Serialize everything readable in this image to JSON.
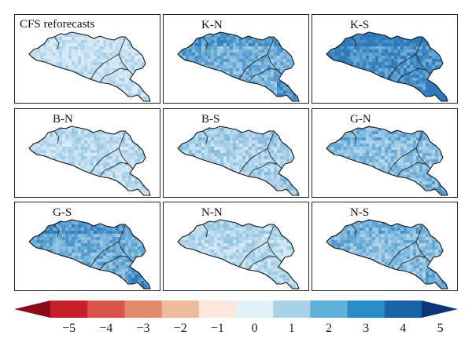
{
  "panels": [
    {
      "label": "CFS reforecasts",
      "intensity": 1.2,
      "seed": 1
    },
    {
      "label": "K-N",
      "intensity": 2.6,
      "seed": 2
    },
    {
      "label": "K-S",
      "intensity": 3.3,
      "seed": 3
    },
    {
      "label": "B-N",
      "intensity": 1.4,
      "seed": 4
    },
    {
      "label": "B-S",
      "intensity": 1.7,
      "seed": 5
    },
    {
      "label": "G-N",
      "intensity": 2.2,
      "seed": 6
    },
    {
      "label": "G-S",
      "intensity": 2.7,
      "seed": 7
    },
    {
      "label": "N-N",
      "intensity": 1.5,
      "seed": 8
    },
    {
      "label": "N-S",
      "intensity": 2.3,
      "seed": 9
    }
  ],
  "colorbar": {
    "ticks": [
      "−5",
      "−4",
      "−3",
      "−2",
      "−1",
      "0",
      "1",
      "2",
      "3",
      "4",
      "5"
    ],
    "colors": [
      "#8b0a1a",
      "#c8202a",
      "#d9554b",
      "#e08a6a",
      "#eebb9c",
      "#fbe7de",
      "#e3f1f9",
      "#a9d2e9",
      "#5fb0d8",
      "#2a8cc6",
      "#1a62a8",
      "#0d3474"
    ]
  }
}
